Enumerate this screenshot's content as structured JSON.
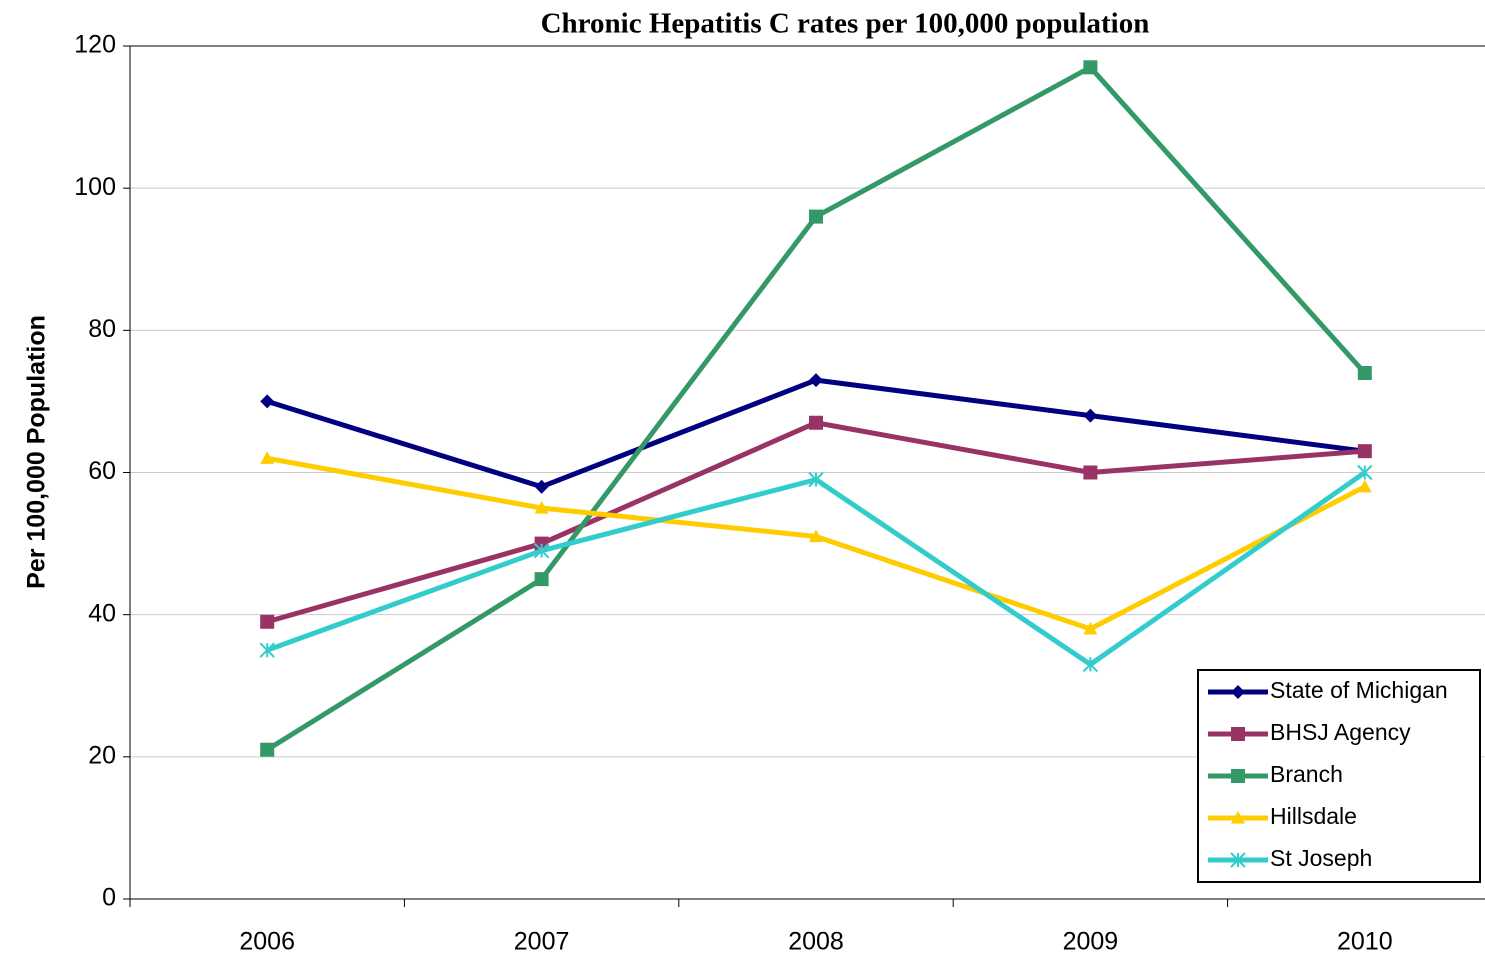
{
  "chart_data": {
    "type": "line",
    "title": "Chronic Hepatitis C rates per 100,000 population",
    "y_label": "Per 100,000 Population",
    "categories": [
      "2006",
      "2007",
      "2008",
      "2009",
      "2010"
    ],
    "series": [
      {
        "name": "State of Michigan",
        "color": "#000080",
        "marker": "diamond",
        "values": [
          70,
          58,
          73,
          68,
          63
        ]
      },
      {
        "name": "BHSJ Agency",
        "color": "#993366",
        "marker": "square",
        "values": [
          39,
          50,
          67,
          60,
          63
        ]
      },
      {
        "name": "Branch",
        "color": "#339966",
        "marker": "square",
        "values": [
          21,
          45,
          96,
          117,
          74
        ]
      },
      {
        "name": "Hillsdale",
        "color": "#FFCC00",
        "marker": "triangle",
        "values": [
          62,
          55,
          51,
          38,
          58
        ]
      },
      {
        "name": "St Joseph",
        "color": "#33CCCC",
        "marker": "star",
        "values": [
          35,
          49,
          59,
          33,
          60
        ]
      }
    ],
    "ylim": [
      0,
      120
    ],
    "yticks": [
      0,
      20,
      40,
      60,
      80,
      100,
      120
    ],
    "grid": true,
    "legend": "lower right"
  }
}
